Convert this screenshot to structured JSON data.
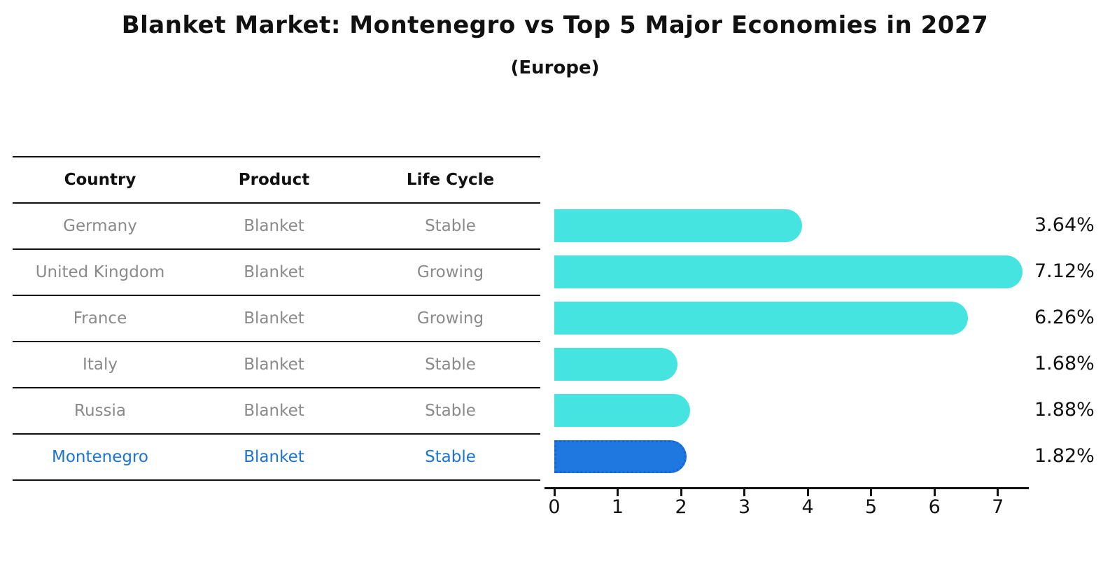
{
  "header": {
    "title": "Blanket Market: Montenegro vs Top 5 Major Economies in 2027",
    "subtitle": "(Europe)"
  },
  "table": {
    "columns": [
      "Country",
      "Product",
      "Life Cycle"
    ]
  },
  "chart_data": {
    "type": "bar",
    "orientation": "horizontal",
    "title": "Blanket Market: Montenegro vs Top 5 Major Economies in 2027",
    "subtitle": "(Europe)",
    "categories": [
      "Germany",
      "United Kingdom",
      "France",
      "Italy",
      "Russia",
      "Montenegro"
    ],
    "values": [
      3.64,
      7.12,
      6.26,
      1.68,
      1.88,
      1.82
    ],
    "value_unit": "%",
    "xlim": [
      0,
      7.5
    ],
    "x_ticks": [
      0,
      1,
      2,
      3,
      4,
      5,
      6,
      7
    ],
    "grid": false,
    "legend": false,
    "rows": [
      {
        "country": "Germany",
        "product": "Blanket",
        "life_cycle": "Stable",
        "value": 3.64,
        "label": "3.64%",
        "highlight": false
      },
      {
        "country": "United Kingdom",
        "product": "Blanket",
        "life_cycle": "Growing",
        "value": 7.12,
        "label": "7.12%",
        "highlight": false
      },
      {
        "country": "France",
        "product": "Blanket",
        "life_cycle": "Growing",
        "value": 6.26,
        "label": "6.26%",
        "highlight": false
      },
      {
        "country": "Italy",
        "product": "Blanket",
        "life_cycle": "Stable",
        "value": 1.68,
        "label": "1.68%",
        "highlight": false
      },
      {
        "country": "Russia",
        "product": "Blanket",
        "life_cycle": "Stable",
        "value": 1.88,
        "label": "1.88%",
        "highlight": false
      },
      {
        "country": "Montenegro",
        "product": "Blanket",
        "life_cycle": "Stable",
        "value": 1.82,
        "label": "1.82%",
        "highlight": true
      }
    ],
    "colors": {
      "bar": "#45e4e1",
      "highlight_bar": "#1f78e0",
      "highlight_border": "#1565d8",
      "highlight_text": "#1b74d1",
      "row_text": "#8a8a8a",
      "header_text": "#111111",
      "axis": "#111111"
    }
  }
}
